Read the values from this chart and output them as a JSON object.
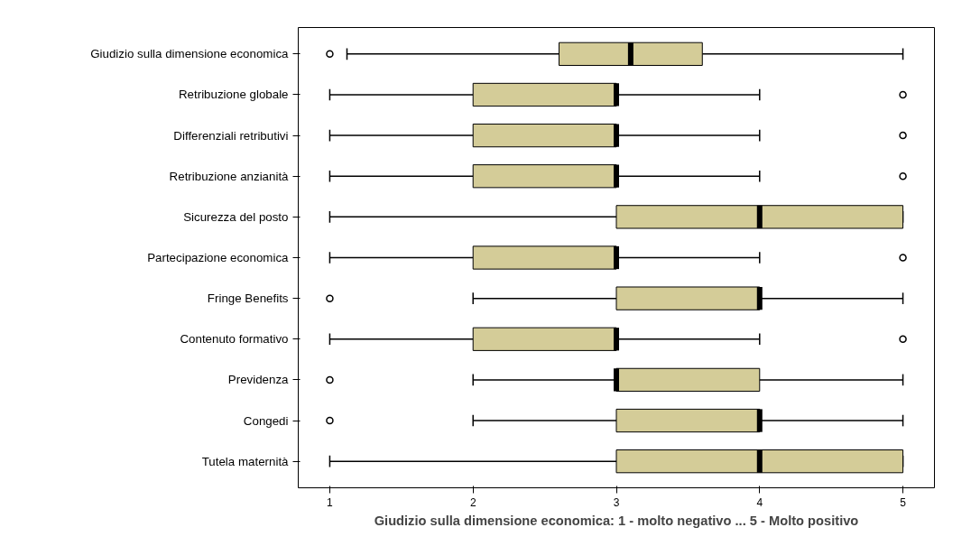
{
  "chart_data": {
    "type": "box",
    "orientation": "horizontal",
    "xlabel": "Giudizio sulla dimensione economica: 1 - molto negativo ... 5 - Molto positivo",
    "categories": [
      "Giudizio sulla dimensione economica",
      "Retribuzione globale",
      "Differenziali retributivi",
      "Retribuzione anzianità",
      "Sicurezza del posto",
      "Partecipazione economica",
      "Fringe Benefits",
      "Contenuto formativo",
      "Previdenza",
      "Congedi",
      "Tutela maternità"
    ],
    "color": "#d4cc98",
    "xlim": [
      0.78,
      5.22
    ],
    "xticks": [
      1,
      2,
      3,
      4,
      5
    ],
    "grid": false,
    "boxes": [
      {
        "low": 1.12,
        "q1": 2.6,
        "median": 3.1,
        "q3": 3.6,
        "high": 5,
        "outliers": [
          1
        ]
      },
      {
        "low": 1,
        "q1": 2,
        "median": 3,
        "q3": 3,
        "high": 4,
        "outliers": [
          5
        ]
      },
      {
        "low": 1,
        "q1": 2,
        "median": 3,
        "q3": 3,
        "high": 4,
        "outliers": [
          5
        ]
      },
      {
        "low": 1,
        "q1": 2,
        "median": 3,
        "q3": 3,
        "high": 4,
        "outliers": [
          5
        ]
      },
      {
        "low": 1,
        "q1": 3,
        "median": 4,
        "q3": 5,
        "high": 5
      },
      {
        "low": 1,
        "q1": 2,
        "median": 3,
        "q3": 3,
        "high": 4,
        "outliers": [
          5
        ]
      },
      {
        "low": 2,
        "q1": 3,
        "median": 4,
        "q3": 4,
        "high": 5,
        "outliers": [
          1
        ]
      },
      {
        "low": 1,
        "q1": 2,
        "median": 3,
        "q3": 3,
        "high": 4,
        "outliers": [
          5
        ]
      },
      {
        "low": 2,
        "q1": 3,
        "median": 3,
        "q3": 4,
        "high": 5,
        "outliers": [
          1
        ]
      },
      {
        "low": 2,
        "q1": 3,
        "median": 4,
        "q3": 4,
        "high": 5,
        "outliers": [
          1
        ]
      },
      {
        "low": 1,
        "q1": 3,
        "median": 4,
        "q3": 5,
        "high": 5
      }
    ]
  }
}
